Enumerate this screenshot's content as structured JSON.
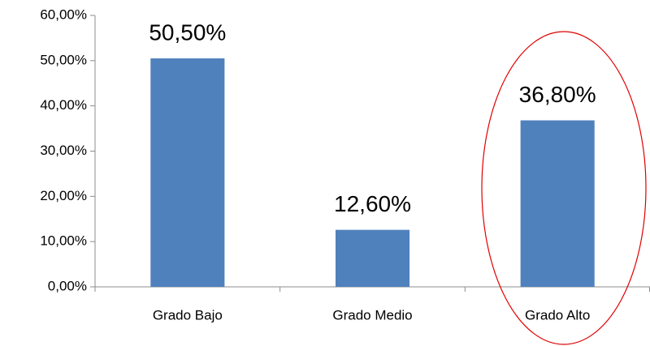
{
  "chart_data": {
    "type": "bar",
    "categories": [
      "Grado Bajo",
      "Grado Medio",
      "Grado Alto"
    ],
    "values": [
      50.5,
      12.6,
      36.8
    ],
    "value_labels": [
      "50,50%",
      "12,60%",
      "36,80%"
    ],
    "color": "#4f81bd",
    "ylim": [
      0,
      60
    ],
    "yticks": [
      {
        "value": 0,
        "label": "0,00%"
      },
      {
        "value": 10,
        "label": "10,00%"
      },
      {
        "value": 20,
        "label": "20,00%"
      },
      {
        "value": 30,
        "label": "30,00%"
      },
      {
        "value": 40,
        "label": "40,00%"
      },
      {
        "value": 50,
        "label": "50,00%"
      },
      {
        "value": 60,
        "label": "60,00%"
      }
    ],
    "grid": false
  }
}
